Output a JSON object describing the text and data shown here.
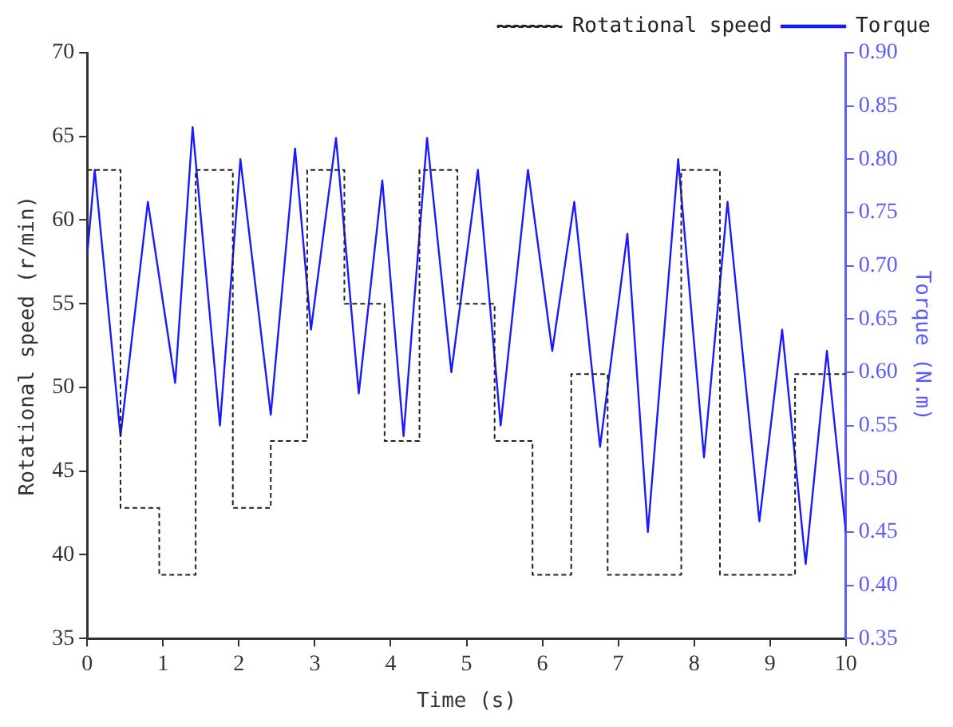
{
  "chart_data": {
    "type": "line",
    "xlabel": "Time (s)",
    "ylabel": "Rotational speed (r/min)",
    "y2label": "Torque (N.m)",
    "xlim": [
      0,
      10
    ],
    "xticks": [
      0,
      1,
      2,
      3,
      4,
      5,
      6,
      7,
      8,
      9,
      10
    ],
    "ylim": [
      35,
      70
    ],
    "yticks": [
      35,
      40,
      45,
      50,
      55,
      60,
      65,
      70
    ],
    "y2lim": [
      0.35,
      0.9
    ],
    "y2ticks": [
      {
        "value": 0.35,
        "label": "0.35"
      },
      {
        "value": 0.4,
        "label": "0.40"
      },
      {
        "value": 0.45,
        "label": "0.45"
      },
      {
        "value": 0.5,
        "label": "0.50"
      },
      {
        "value": 0.55,
        "label": "0.55"
      },
      {
        "value": 0.6,
        "label": "0.60"
      },
      {
        "value": 0.65,
        "label": "0.65"
      },
      {
        "value": 0.7,
        "label": "0.70"
      },
      {
        "value": 0.75,
        "label": "0.75"
      },
      {
        "value": 0.8,
        "label": "0.80"
      },
      {
        "value": 0.85,
        "label": "0.85"
      },
      {
        "value": 0.9,
        "label": "0.90"
      }
    ],
    "grid": false,
    "legend": "top right",
    "marker": "none",
    "series": [
      {
        "name": "Rotational speed",
        "type": "step",
        "color": "#222222",
        "line_style": "dashed",
        "x": [
          0,
          0.44,
          0.95,
          1.43,
          1.92,
          2.42,
          2.9,
          3.39,
          3.92,
          4.38,
          4.88,
          5.37,
          5.87,
          6.38,
          6.86,
          7.83,
          8.34,
          9.33,
          10
        ],
        "values": [
          63,
          42.8,
          38.8,
          63,
          42.8,
          46.8,
          63,
          55,
          46.8,
          63,
          55,
          46.8,
          38.8,
          50.8,
          38.8,
          63,
          38.8,
          50.8,
          50.8
        ]
      },
      {
        "name": "Torque",
        "type": "line",
        "axis": "y2",
        "color": "#1a1aff",
        "line_style": "solid",
        "x": [
          0,
          0.1,
          0.44,
          0.8,
          1.16,
          1.39,
          1.75,
          2.02,
          2.42,
          2.74,
          2.95,
          3.28,
          3.58,
          3.89,
          4.17,
          4.48,
          4.8,
          5.15,
          5.45,
          5.81,
          6.13,
          6.42,
          6.76,
          7.12,
          7.39,
          7.79,
          8.13,
          8.44,
          8.86,
          9.16,
          9.47,
          9.75,
          10
        ],
        "values": [
          0.71,
          0.79,
          0.54,
          0.76,
          0.59,
          0.83,
          0.55,
          0.8,
          0.56,
          0.81,
          0.64,
          0.82,
          0.58,
          0.78,
          0.54,
          0.82,
          0.6,
          0.79,
          0.55,
          0.79,
          0.62,
          0.76,
          0.53,
          0.73,
          0.45,
          0.8,
          0.52,
          0.76,
          0.46,
          0.64,
          0.42,
          0.62,
          0.45
        ]
      }
    ]
  }
}
